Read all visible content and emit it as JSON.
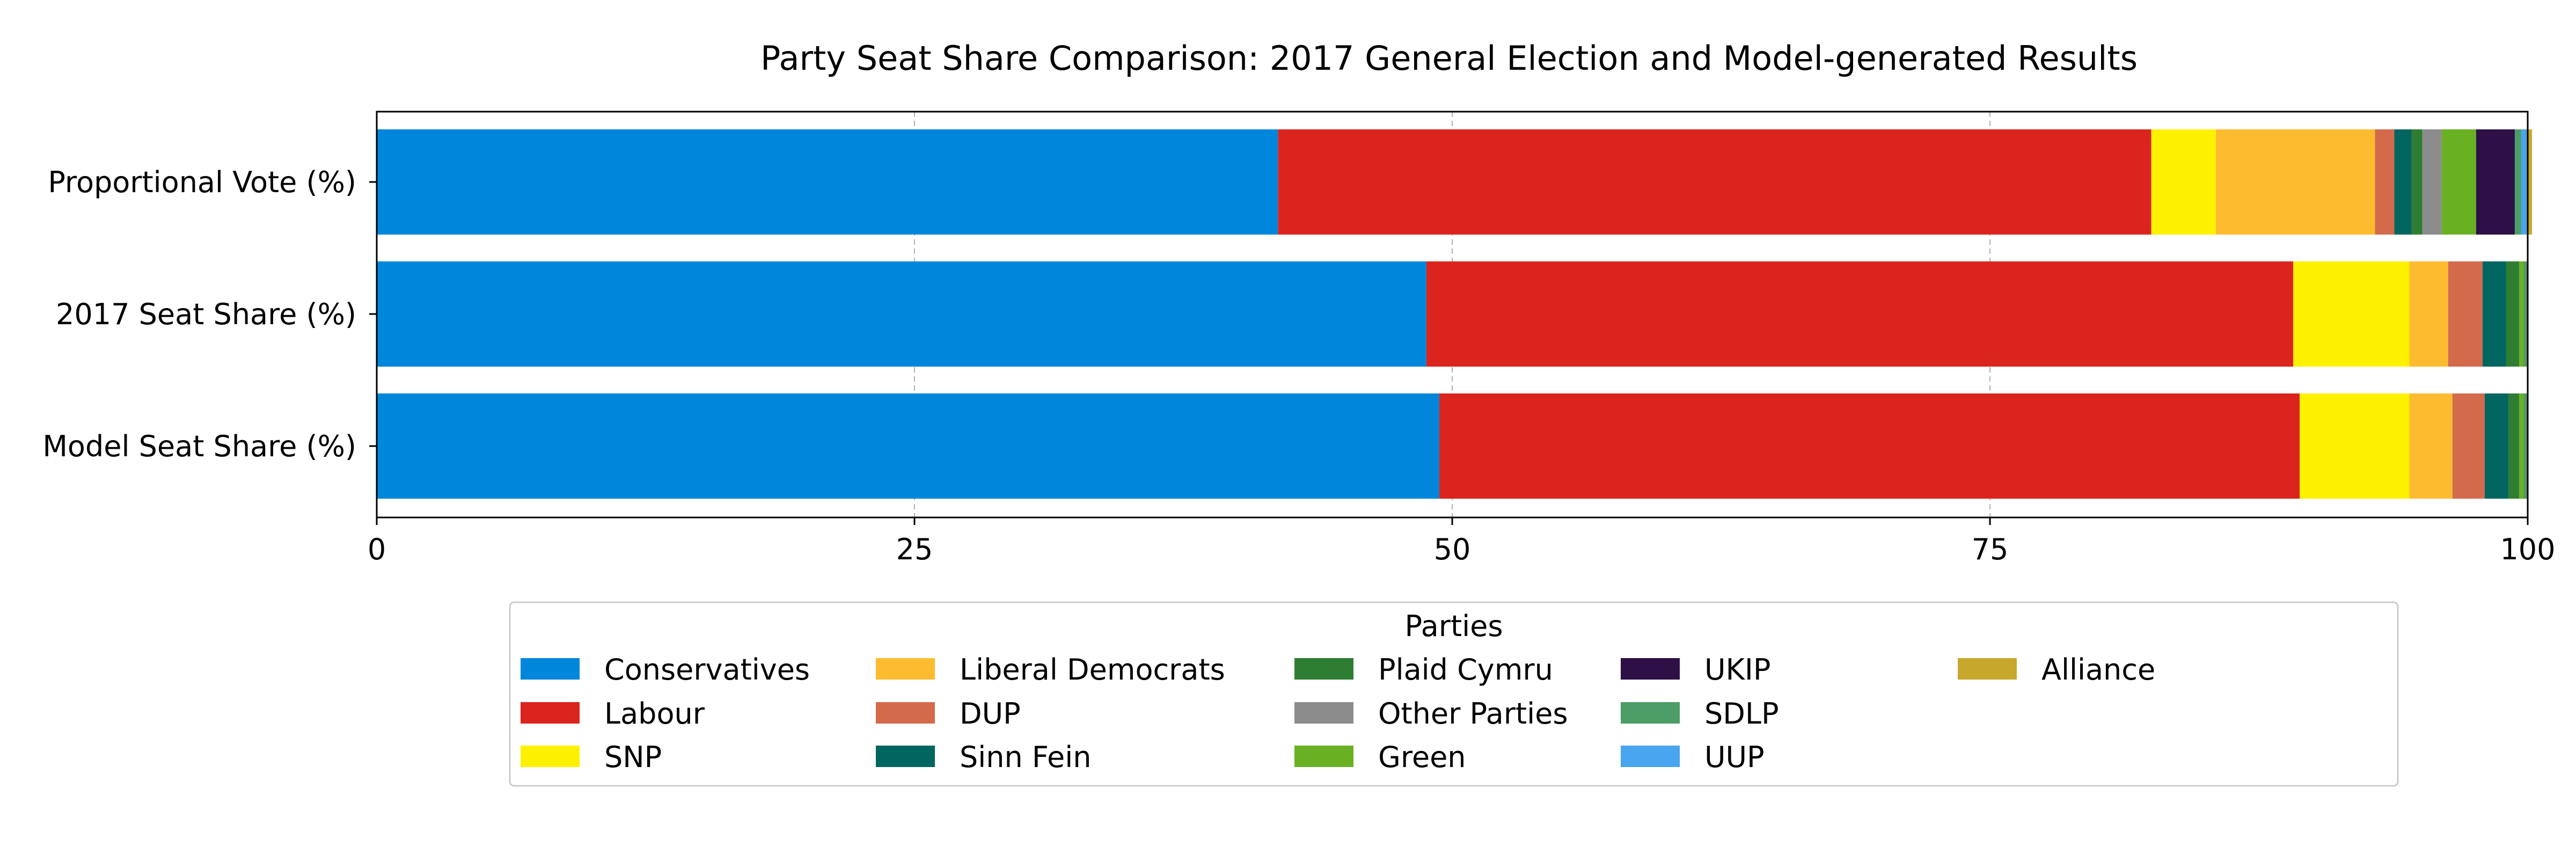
{
  "chart_data": {
    "type": "bar",
    "orientation": "horizontal",
    "stacked": true,
    "title": "Party Seat Share Comparison: 2017 General Election and Model-generated Results",
    "categories": [
      "Proportional Vote (%)",
      "2017 Seat Share (%)",
      "Model Seat Share (%)"
    ],
    "xlim": [
      0,
      100
    ],
    "xticks": [
      0,
      25,
      50,
      75,
      100
    ],
    "grid": "x-dashed",
    "legend_title": "Parties",
    "legend_placement": "bottom-center",
    "series": [
      {
        "name": "Conservatives",
        "color": "#0087dc",
        "values": [
          41.9,
          48.8,
          49.4
        ]
      },
      {
        "name": "Labour",
        "color": "#dc241f",
        "values": [
          40.6,
          40.3,
          40.0
        ]
      },
      {
        "name": "SNP",
        "color": "#fdf100",
        "values": [
          3.0,
          5.4,
          5.1
        ]
      },
      {
        "name": "Liberal Democrats",
        "color": "#fdbb30",
        "values": [
          7.4,
          1.8,
          2.0
        ]
      },
      {
        "name": "DUP",
        "color": "#d46a4c",
        "values": [
          0.9,
          1.6,
          1.5
        ]
      },
      {
        "name": "Sinn Fein",
        "color": "#00665f",
        "values": [
          0.8,
          1.1,
          1.1
        ]
      },
      {
        "name": "Plaid Cymru",
        "color": "#2e7d32",
        "values": [
          0.5,
          0.6,
          0.5
        ]
      },
      {
        "name": "Other Parties",
        "color": "#8c8c8c",
        "values": [
          0.9,
          0.0,
          0.0
        ]
      },
      {
        "name": "Green",
        "color": "#6ab023",
        "values": [
          1.6,
          0.2,
          0.2
        ]
      },
      {
        "name": "UKIP",
        "color": "#2e1046",
        "values": [
          1.8,
          0.0,
          0.0
        ]
      },
      {
        "name": "SDLP",
        "color": "#4d9d67",
        "values": [
          0.3,
          0.2,
          0.2
        ]
      },
      {
        "name": "UUP",
        "color": "#48a5ee",
        "values": [
          0.3,
          0.0,
          0.0
        ]
      },
      {
        "name": "Alliance",
        "color": "#c8a82c",
        "values": [
          0.2,
          0.0,
          0.0
        ]
      }
    ]
  }
}
